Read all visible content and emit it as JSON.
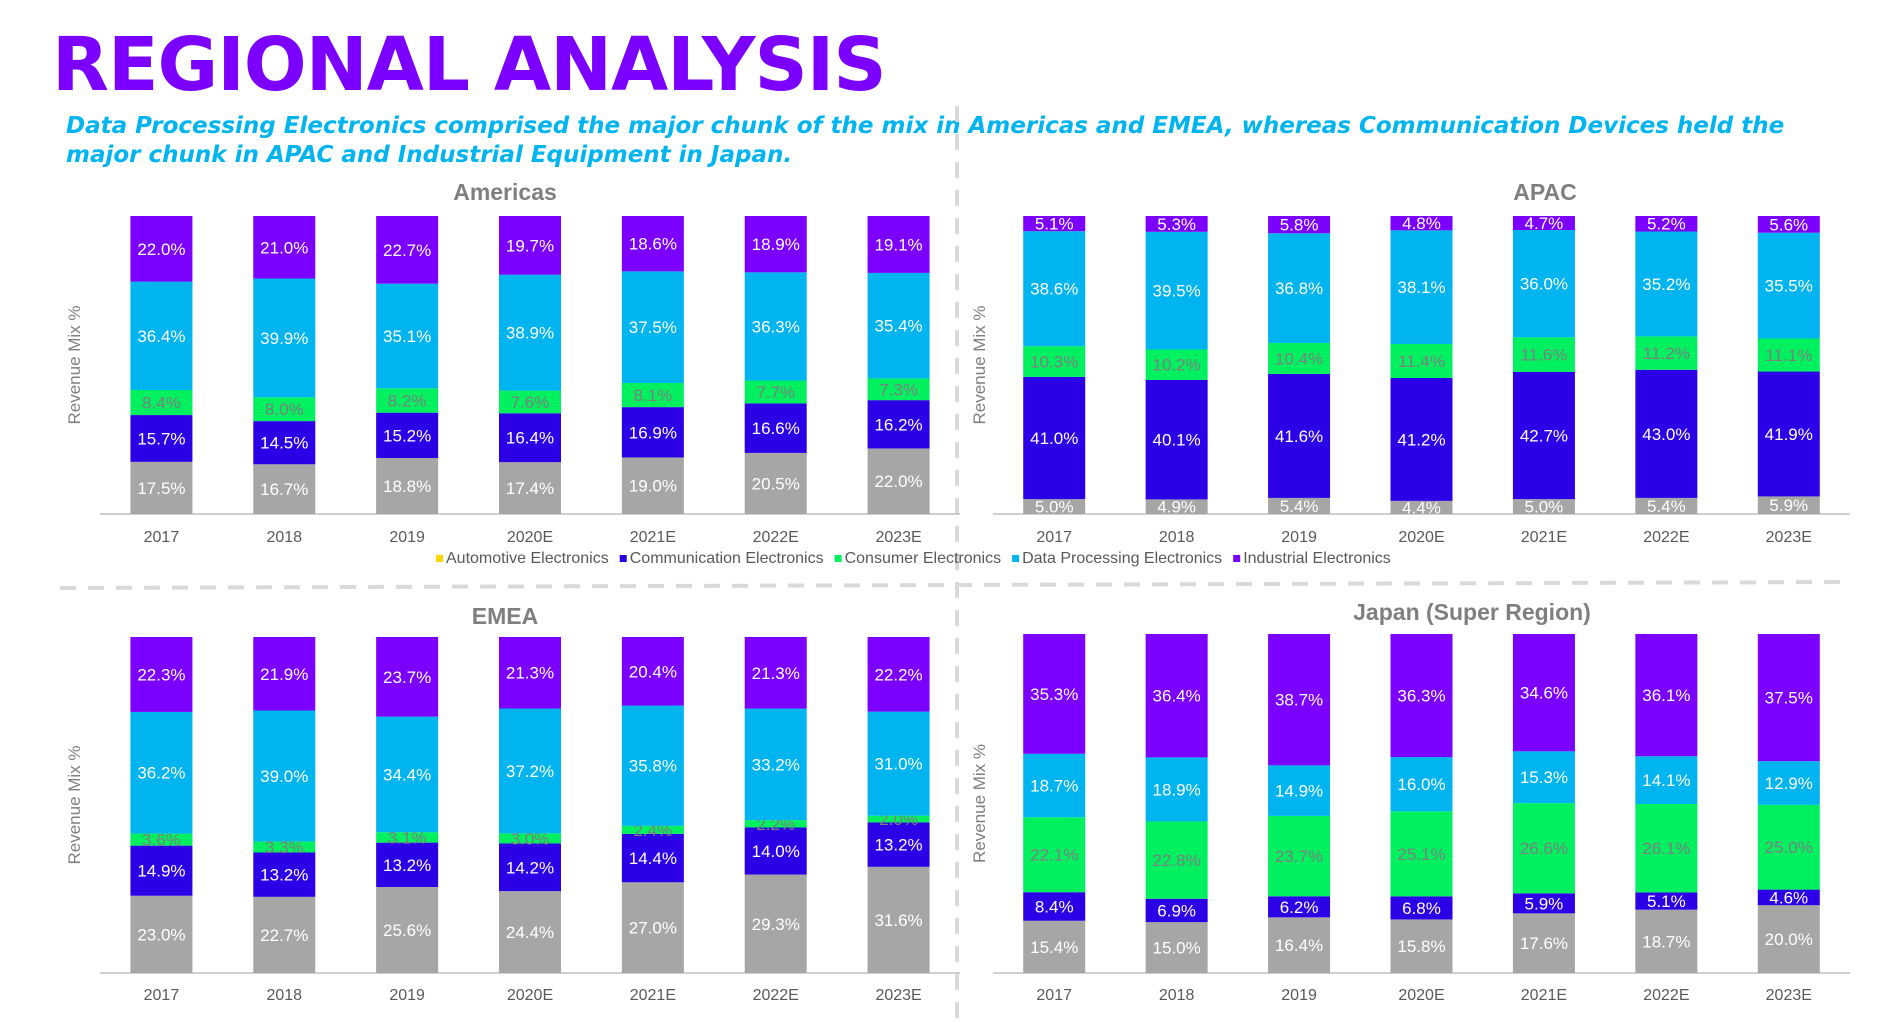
{
  "header": {
    "title": "REGIONAL ANALYSIS",
    "subtitle": "Data Processing Electronics comprised the major chunk of the mix in Americas and EMEA, whereas Communication Devices held the major chunk in APAC and Industrial Equipment in Japan."
  },
  "colors": {
    "title": "#7c00ff",
    "subtitle": "#00b4f0",
    "separator": "#d9d9d9",
    "axis": "#bfbfbf"
  },
  "legend": [
    {
      "name": "Automotive Electronics",
      "color": "#ffd700"
    },
    {
      "name": "Communication Electronics",
      "color": "#2b00e6"
    },
    {
      "name": "Consumer Electronics",
      "color": "#00f060"
    },
    {
      "name": "Data Processing Electronics",
      "color": "#00b4f0"
    },
    {
      "name": "Industrial Electronics",
      "color": "#7c00ff"
    }
  ],
  "chart_data": [
    {
      "type": "bar",
      "stacked": true,
      "title": "Americas",
      "ylabel": "Revenue Mix %",
      "categories": [
        "2017",
        "2018",
        "2019",
        "2020E",
        "2021E",
        "2022E",
        "2023E"
      ],
      "series": [
        {
          "name": "Automotive Electronics",
          "color": "#a6a6a6",
          "values": [
            17.5,
            16.7,
            18.8,
            17.4,
            19.0,
            20.5,
            22.0
          ]
        },
        {
          "name": "Communication Electronics",
          "color": "#2b00e6",
          "values": [
            15.7,
            14.5,
            15.2,
            16.4,
            16.9,
            16.6,
            16.2
          ]
        },
        {
          "name": "Consumer Electronics",
          "color": "#00f060",
          "values": [
            8.4,
            8.0,
            8.2,
            7.6,
            8.1,
            7.7,
            7.3
          ]
        },
        {
          "name": "Data Processing Electronics",
          "color": "#00b4f0",
          "values": [
            36.4,
            39.9,
            35.1,
            38.9,
            37.5,
            36.3,
            35.4
          ]
        },
        {
          "name": "Industrial Electronics",
          "color": "#7c00ff",
          "values": [
            22.0,
            21.0,
            22.7,
            19.7,
            18.6,
            18.9,
            19.1
          ]
        }
      ]
    },
    {
      "type": "bar",
      "stacked": true,
      "title": "APAC",
      "ylabel": "Revenue Mix %",
      "categories": [
        "2017",
        "2018",
        "2019",
        "2020E",
        "2021E",
        "2022E",
        "2023E"
      ],
      "series": [
        {
          "name": "Automotive Electronics",
          "color": "#a6a6a6",
          "values": [
            5.0,
            4.9,
            5.4,
            4.4,
            5.0,
            5.4,
            5.9
          ]
        },
        {
          "name": "Communication Electronics",
          "color": "#2b00e6",
          "values": [
            41.0,
            40.1,
            41.6,
            41.2,
            42.7,
            43.0,
            41.9
          ]
        },
        {
          "name": "Consumer Electronics",
          "color": "#00f060",
          "values": [
            10.3,
            10.2,
            10.4,
            11.4,
            11.6,
            11.2,
            11.1
          ]
        },
        {
          "name": "Data Processing Electronics",
          "color": "#00b4f0",
          "values": [
            38.6,
            39.5,
            36.8,
            38.1,
            36.0,
            35.2,
            35.5
          ]
        },
        {
          "name": "Industrial Electronics",
          "color": "#7c00ff",
          "values": [
            5.1,
            5.3,
            5.8,
            4.8,
            4.7,
            5.2,
            5.6
          ]
        }
      ]
    },
    {
      "type": "bar",
      "stacked": true,
      "title": "EMEA",
      "ylabel": "Revenue Mix %",
      "categories": [
        "2017",
        "2018",
        "2019",
        "2020E",
        "2021E",
        "2022E",
        "2023E"
      ],
      "series": [
        {
          "name": "Automotive Electronics",
          "color": "#a6a6a6",
          "values": [
            23.0,
            22.7,
            25.6,
            24.4,
            27.0,
            29.3,
            31.6
          ]
        },
        {
          "name": "Communication Electronics",
          "color": "#2b00e6",
          "values": [
            14.9,
            13.2,
            13.2,
            14.2,
            14.4,
            14.0,
            13.2
          ]
        },
        {
          "name": "Consumer Electronics",
          "color": "#00f060",
          "values": [
            3.6,
            3.3,
            3.1,
            3.0,
            2.4,
            2.2,
            2.0
          ]
        },
        {
          "name": "Data Processing Electronics",
          "color": "#00b4f0",
          "values": [
            36.2,
            39.0,
            34.4,
            37.2,
            35.8,
            33.2,
            31.0
          ]
        },
        {
          "name": "Industrial Electronics",
          "color": "#7c00ff",
          "values": [
            22.3,
            21.9,
            23.7,
            21.3,
            20.4,
            21.3,
            22.2
          ]
        }
      ]
    },
    {
      "type": "bar",
      "stacked": true,
      "title": "Japan (Super Region)",
      "ylabel": "Revenue Mix %",
      "categories": [
        "2017",
        "2018",
        "2019",
        "2020E",
        "2021E",
        "2022E",
        "2023E"
      ],
      "series": [
        {
          "name": "Automotive Electronics",
          "color": "#a6a6a6",
          "values": [
            15.4,
            15.0,
            16.4,
            15.8,
            17.6,
            18.7,
            20.0
          ]
        },
        {
          "name": "Communication Electronics",
          "color": "#2b00e6",
          "values": [
            8.4,
            6.9,
            6.2,
            6.8,
            5.9,
            5.1,
            4.6
          ]
        },
        {
          "name": "Consumer Electronics",
          "color": "#00f060",
          "values": [
            22.1,
            22.8,
            23.7,
            25.1,
            26.6,
            26.1,
            25.0
          ]
        },
        {
          "name": "Data Processing Electronics",
          "color": "#00b4f0",
          "values": [
            18.7,
            18.9,
            14.9,
            16.0,
            15.3,
            14.1,
            12.9
          ]
        },
        {
          "name": "Industrial Electronics",
          "color": "#7c00ff",
          "values": [
            35.3,
            36.4,
            38.7,
            36.3,
            34.6,
            36.1,
            37.5
          ]
        }
      ]
    }
  ]
}
